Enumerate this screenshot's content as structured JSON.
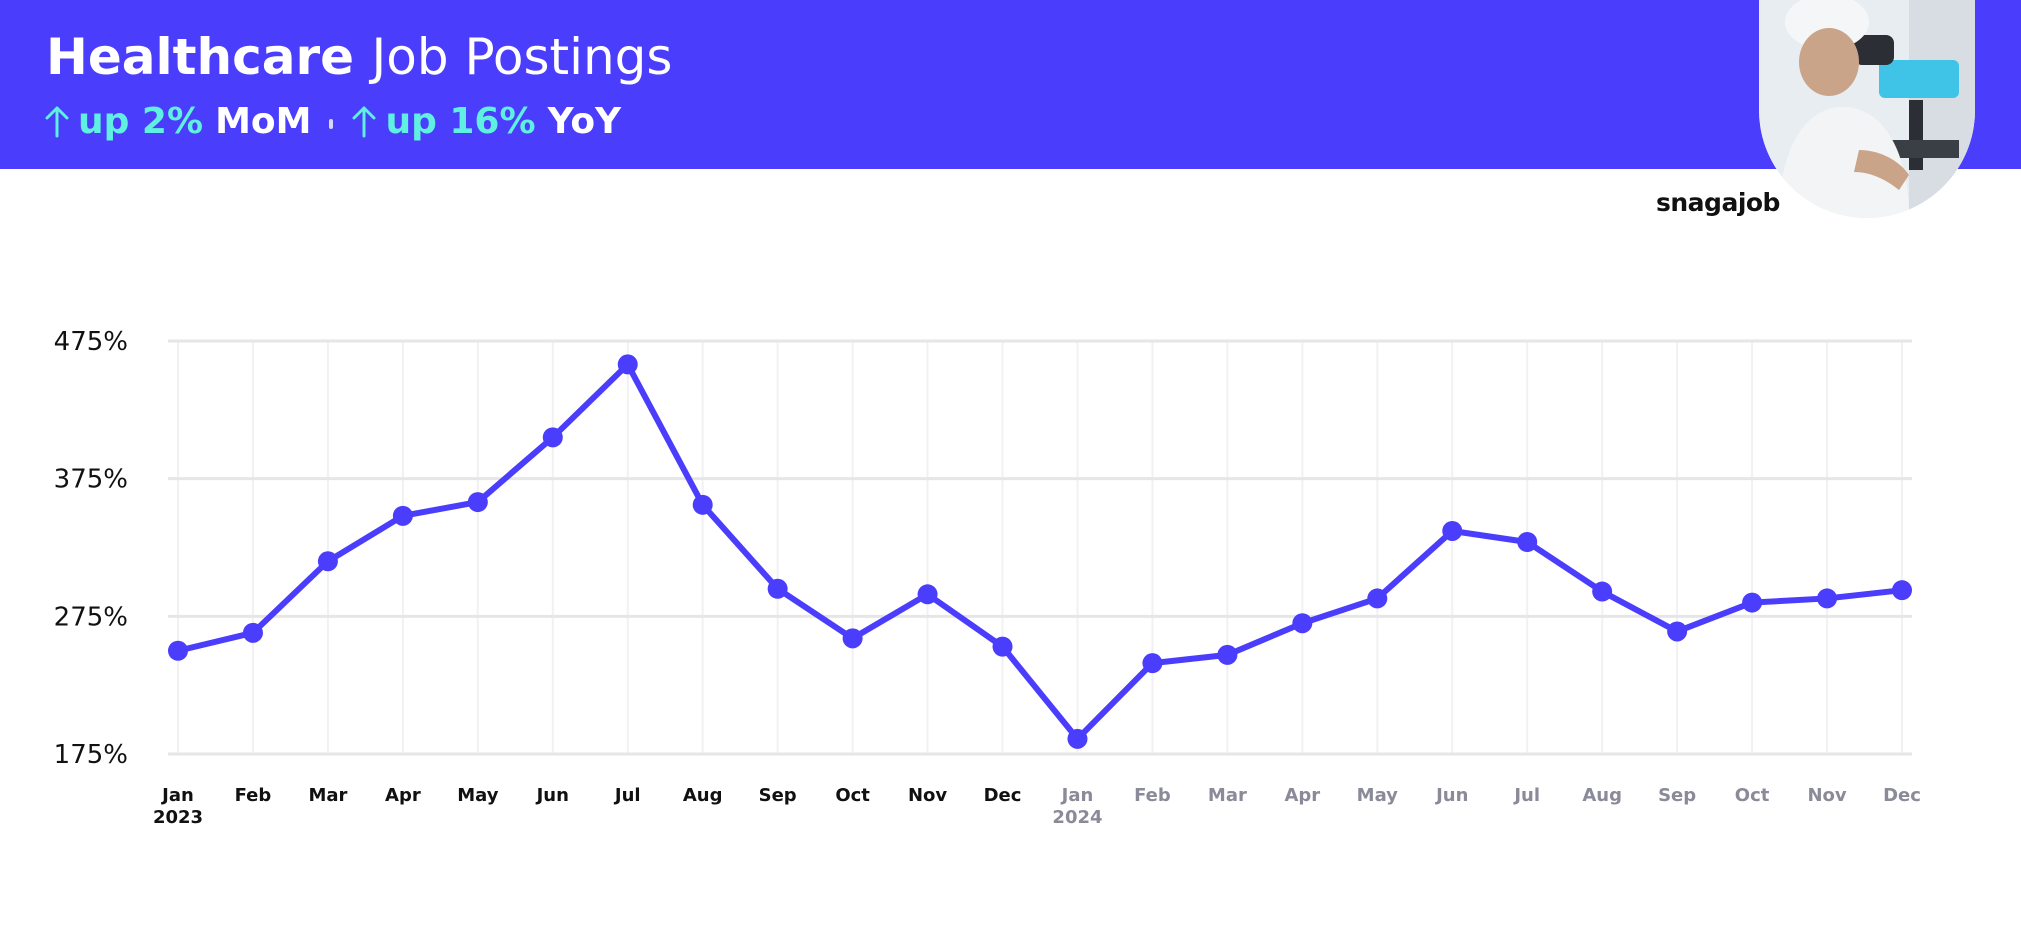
{
  "header": {
    "title_bold": "Healthcare",
    "title_rest": "Job Postings",
    "stats": [
      {
        "arrow": "up-arrow-icon",
        "change": "up 2%",
        "label": "MoM"
      },
      {
        "arrow": "up-arrow-icon",
        "change": "up 16%",
        "label": "YoY"
      }
    ]
  },
  "brand": "snagajob",
  "colors": {
    "banner": "#4b3dfc",
    "line": "#4b3dfc",
    "accent_text": "#5ff0e2",
    "label_2023": "#111111",
    "label_2024": "#8a8a99",
    "grid": "#e6e6e6"
  },
  "chart_data": {
    "type": "line",
    "title": "",
    "xlabel": "",
    "ylabel": "",
    "ylim": [
      175,
      475
    ],
    "y_ticks": [
      "475%",
      "375%",
      "275%",
      "175%"
    ],
    "grid": true,
    "x": [
      "Jan",
      "Feb",
      "Mar",
      "Apr",
      "May",
      "Jun",
      "Jul",
      "Aug",
      "Sep",
      "Oct",
      "Nov",
      "Dec",
      "Jan",
      "Feb",
      "Mar",
      "Apr",
      "May",
      "Jun",
      "Jul",
      "Aug",
      "Sep",
      "Oct",
      "Nov",
      "Dec"
    ],
    "year_labels": [
      {
        "index": 0,
        "text": "2023"
      },
      {
        "index": 12,
        "text": "2024"
      }
    ],
    "series": [
      {
        "values": [
          250,
          263,
          315,
          348,
          358,
          405,
          458,
          356,
          295,
          259,
          291,
          253,
          186,
          241,
          247,
          270,
          288,
          337,
          329,
          293,
          264,
          285,
          288,
          294
        ]
      }
    ]
  }
}
